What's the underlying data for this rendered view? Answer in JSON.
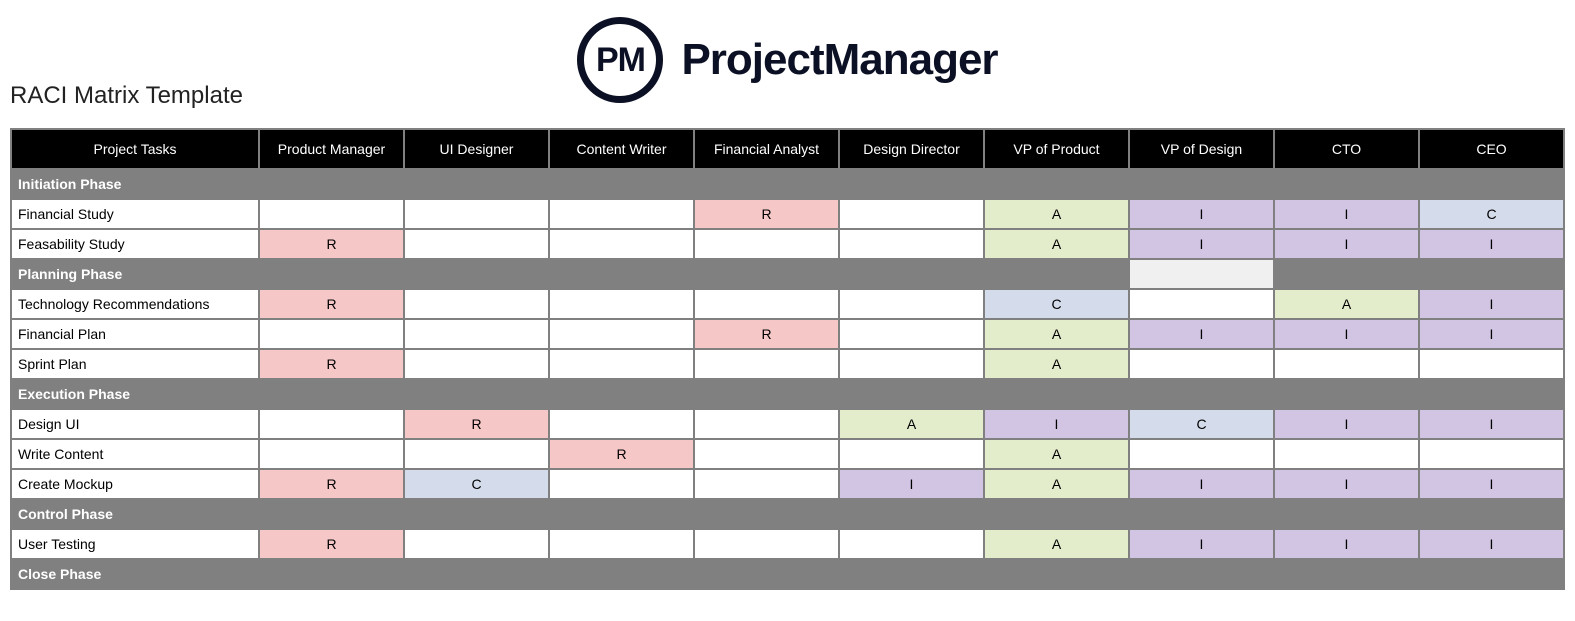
{
  "brand": {
    "logo_letters": "PM",
    "name": "ProjectManager",
    "text_color": "#0b1024"
  },
  "title": "RACI Matrix Template",
  "colors": {
    "header_bg": "#000000",
    "header_fg": "#ffffff",
    "grid_border": "#808080",
    "phase_bg": "#808080",
    "phase_fg": "#ffffff",
    "white": "#ffffff",
    "responsible": "#f5c7c7",
    "accountable": "#e3eccb",
    "consulted": "#d4dceb",
    "informed": "#d2c5e3",
    "light_gray": "#f0f0f0"
  },
  "columns": [
    "Project Tasks",
    "Product Manager",
    "UI Designer",
    "Content Writer",
    "Financial Analyst",
    "Design Director",
    "VP of Product",
    "VP of Design",
    "CTO",
    "CEO"
  ],
  "rows": [
    {
      "type": "phase",
      "label": "Initiation Phase",
      "light_cells": []
    },
    {
      "type": "task",
      "label": "Financial Study",
      "cells": [
        "",
        "",
        "",
        "R",
        "",
        "A",
        "I",
        "I",
        "C"
      ]
    },
    {
      "type": "task",
      "label": "Feasability Study",
      "cells": [
        "R",
        "",
        "",
        "",
        "",
        "A",
        "I",
        "I",
        "I"
      ]
    },
    {
      "type": "phase",
      "label": "Planning Phase",
      "light_cells": [
        6
      ]
    },
    {
      "type": "task",
      "label": "Technology Recommendations",
      "cells": [
        "R",
        "",
        "",
        "",
        "",
        "C",
        "",
        "A",
        "I"
      ]
    },
    {
      "type": "task",
      "label": "Financial Plan",
      "cells": [
        "",
        "",
        "",
        "R",
        "",
        "A",
        "I",
        "I",
        "I"
      ]
    },
    {
      "type": "task",
      "label": "Sprint Plan",
      "cells": [
        "R",
        "",
        "",
        "",
        "",
        "A",
        "",
        "",
        ""
      ]
    },
    {
      "type": "phase",
      "label": "Execution Phase",
      "light_cells": []
    },
    {
      "type": "task",
      "label": "Design UI",
      "cells": [
        "",
        "R",
        "",
        "",
        "A",
        "I",
        "C",
        "I",
        "I"
      ]
    },
    {
      "type": "task",
      "label": "Write Content",
      "cells": [
        "",
        "",
        "R",
        "",
        "",
        "A",
        "",
        "",
        ""
      ]
    },
    {
      "type": "task",
      "label": "Create Mockup",
      "cells": [
        "R",
        "C",
        "",
        "",
        "I",
        "A",
        "I",
        "I",
        "I"
      ]
    },
    {
      "type": "phase",
      "label": "Control Phase",
      "light_cells": []
    },
    {
      "type": "task",
      "label": "User Testing",
      "cells": [
        "R",
        "",
        "",
        "",
        "",
        "A",
        "I",
        "I",
        "I"
      ]
    },
    {
      "type": "phase",
      "label": "Close Phase",
      "light_cells": []
    }
  ],
  "value_colors": {
    "R": "responsible",
    "A": "accountable",
    "C": "consulted",
    "I": "informed"
  }
}
